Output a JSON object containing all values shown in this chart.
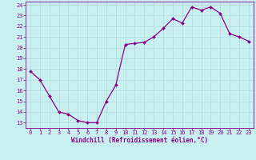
{
  "x": [
    0,
    1,
    2,
    3,
    4,
    5,
    6,
    7,
    8,
    9,
    10,
    11,
    12,
    13,
    14,
    15,
    16,
    17,
    18,
    19,
    20,
    21,
    22,
    23
  ],
  "y": [
    17.8,
    17.0,
    15.5,
    14.0,
    13.8,
    13.2,
    13.0,
    13.0,
    15.0,
    16.5,
    20.3,
    20.4,
    20.5,
    21.0,
    21.8,
    22.7,
    22.3,
    23.8,
    23.5,
    23.8,
    23.2,
    21.3,
    21.0,
    20.6
  ],
  "line_color": "#880088",
  "bg_color": "#c8f0f0",
  "grid_color": "#b0d8d8",
  "xlabel": "Windchill (Refroidissement éolien,°C)",
  "tick_color": "#880088",
  "label_color": "#880088",
  "ylim_min": 12.5,
  "ylim_max": 24.3,
  "xlim_min": -0.5,
  "xlim_max": 23.5,
  "yticks": [
    13,
    14,
    15,
    16,
    17,
    18,
    19,
    20,
    21,
    22,
    23,
    24
  ],
  "xticks": [
    0,
    1,
    2,
    3,
    4,
    5,
    6,
    7,
    8,
    9,
    10,
    11,
    12,
    13,
    14,
    15,
    16,
    17,
    18,
    19,
    20,
    21,
    22,
    23
  ],
  "markersize": 2.0,
  "linewidth": 0.9,
  "tick_fontsize": 5.0,
  "xlabel_fontsize": 5.5
}
